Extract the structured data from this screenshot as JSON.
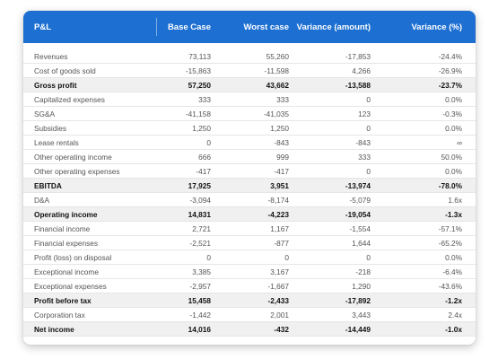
{
  "header": {
    "label": "P&L",
    "base": "Base Case",
    "worst": "Worst case",
    "var_amount": "Variance (amount)",
    "var_pct": "Variance (%)"
  },
  "rows": [
    {
      "label": "Revenues",
      "base": "73,113",
      "worst": "55,260",
      "var": "-17,853",
      "pct": "-24.4%",
      "bold": false
    },
    {
      "label": "Cost of goods sold",
      "base": "-15,863",
      "worst": "-11,598",
      "var": "4,266",
      "pct": "-26.9%",
      "bold": false
    },
    {
      "label": "Gross profit",
      "base": "57,250",
      "worst": "43,662",
      "var": "-13,588",
      "pct": "-23.7%",
      "bold": true
    },
    {
      "label": "Capitalized expenses",
      "base": "333",
      "worst": "333",
      "var": "0",
      "pct": "0.0%",
      "bold": false
    },
    {
      "label": "SG&A",
      "base": "-41,158",
      "worst": "-41,035",
      "var": "123",
      "pct": "-0.3%",
      "bold": false
    },
    {
      "label": "Subsidies",
      "base": "1,250",
      "worst": "1,250",
      "var": "0",
      "pct": "0.0%",
      "bold": false
    },
    {
      "label": "Lease rentals",
      "base": "0",
      "worst": "-843",
      "var": "-843",
      "pct": "∞",
      "bold": false
    },
    {
      "label": "Other operating income",
      "base": "666",
      "worst": "999",
      "var": "333",
      "pct": "50.0%",
      "bold": false
    },
    {
      "label": "Other operating expenses",
      "base": "-417",
      "worst": "-417",
      "var": "0",
      "pct": "0.0%",
      "bold": false
    },
    {
      "label": "EBITDA",
      "base": "17,925",
      "worst": "3,951",
      "var": "-13,974",
      "pct": "-78.0%",
      "bold": true
    },
    {
      "label": "D&A",
      "base": "-3,094",
      "worst": "-8,174",
      "var": "-5,079",
      "pct": "1.6x",
      "bold": false
    },
    {
      "label": "Operating income",
      "base": "14,831",
      "worst": "-4,223",
      "var": "-19,054",
      "pct": "-1.3x",
      "bold": true
    },
    {
      "label": "Financial income",
      "base": "2,721",
      "worst": "1,167",
      "var": "-1,554",
      "pct": "-57.1%",
      "bold": false
    },
    {
      "label": "Financial expenses",
      "base": "-2,521",
      "worst": "-877",
      "var": "1,644",
      "pct": "-65.2%",
      "bold": false
    },
    {
      "label": "Profit (loss) on disposal",
      "base": "0",
      "worst": "0",
      "var": "0",
      "pct": "0.0%",
      "bold": false
    },
    {
      "label": "Exceptional income",
      "base": "3,385",
      "worst": "3,167",
      "var": "-218",
      "pct": "-6.4%",
      "bold": false
    },
    {
      "label": "Exceptional expenses",
      "base": "-2,957",
      "worst": "-1,667",
      "var": "1,290",
      "pct": "-43.6%",
      "bold": false
    },
    {
      "label": "Profit before tax",
      "base": "15,458",
      "worst": "-2,433",
      "var": "-17,892",
      "pct": "-1.2x",
      "bold": true
    },
    {
      "label": "Corporation tax",
      "base": "-1,442",
      "worst": "2,001",
      "var": "3,443",
      "pct": "2.4x",
      "bold": false
    },
    {
      "label": "Net income",
      "base": "14,016",
      "worst": "-432",
      "var": "-14,449",
      "pct": "-1.0x",
      "bold": true
    }
  ]
}
